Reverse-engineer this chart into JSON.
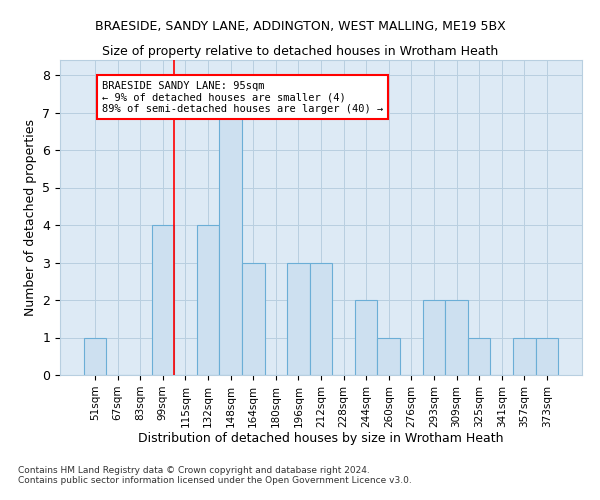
{
  "title": "BRAESIDE, SANDY LANE, ADDINGTON, WEST MALLING, ME19 5BX",
  "subtitle": "Size of property relative to detached houses in Wrotham Heath",
  "xlabel": "Distribution of detached houses by size in Wrotham Heath",
  "ylabel": "Number of detached properties",
  "footnote1": "Contains HM Land Registry data © Crown copyright and database right 2024.",
  "footnote2": "Contains public sector information licensed under the Open Government Licence v3.0.",
  "bar_labels": [
    "51sqm",
    "67sqm",
    "83sqm",
    "99sqm",
    "115sqm",
    "132sqm",
    "148sqm",
    "164sqm",
    "180sqm",
    "196sqm",
    "212sqm",
    "228sqm",
    "244sqm",
    "260sqm",
    "276sqm",
    "293sqm",
    "309sqm",
    "325sqm",
    "341sqm",
    "357sqm",
    "373sqm"
  ],
  "bar_values": [
    1,
    0,
    0,
    4,
    0,
    4,
    7,
    3,
    0,
    3,
    3,
    0,
    2,
    1,
    0,
    2,
    2,
    1,
    0,
    1,
    1
  ],
  "bar_color": "#cde0f0",
  "bar_edge_color": "#6baed6",
  "grid_color": "#b8cfe0",
  "background_color": "#ddeaf5",
  "annotation_text": "BRAESIDE SANDY LANE: 95sqm\n← 9% of detached houses are smaller (4)\n89% of semi-detached houses are larger (40) →",
  "vline_x": 3.5,
  "ylim": [
    0,
    8.4
  ],
  "yticks": [
    0,
    1,
    2,
    3,
    4,
    5,
    6,
    7,
    8
  ]
}
